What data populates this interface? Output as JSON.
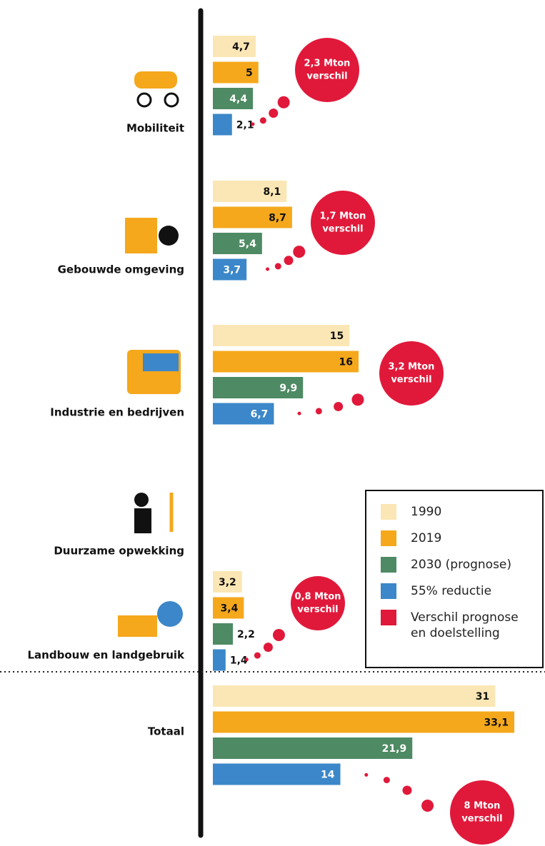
{
  "chart_data": {
    "type": "bar",
    "orientation": "horizontal",
    "categories": [
      "Mobiliteit",
      "Gebouwde omgeving",
      "Industrie en bedrijven",
      "Duurzame opwekking",
      "Landbouw en landgebruik",
      "Totaal"
    ],
    "xlim": [
      0,
      40
    ],
    "series": [
      {
        "name": "1990",
        "color": "#fbe7b5",
        "values": [
          4.7,
          8.1,
          15,
          null,
          3.2,
          31
        ],
        "value_labels": [
          "4,7",
          "8,1",
          "15",
          null,
          "3,2",
          "31"
        ]
      },
      {
        "name": "2019",
        "color": "#f5a81c",
        "values": [
          5,
          8.7,
          16,
          null,
          3.4,
          33.1
        ],
        "value_labels": [
          "5",
          "8,7",
          "16",
          null,
          "3,4",
          "33,1"
        ]
      },
      {
        "name": "2030 (prognose)",
        "color": "#4e8a63",
        "values": [
          4.4,
          5.4,
          9.9,
          null,
          2.2,
          21.9
        ],
        "value_labels": [
          "4,4",
          "5,4",
          "9,9",
          null,
          "2,2",
          "21,9"
        ]
      },
      {
        "name": "55% reductie",
        "color": "#3b87c9",
        "values": [
          2.1,
          3.7,
          6.7,
          null,
          1.4,
          14
        ],
        "value_labels": [
          "2,1",
          "3,7",
          "6,7",
          null,
          "1,4",
          "14"
        ]
      }
    ],
    "difference": {
      "name": "Verschil prognose en doelstelling",
      "color": "#e0193a",
      "labels": [
        "2,3 Mton",
        "1,7 Mton",
        "3,2 Mton",
        null,
        "0,8 Mton",
        "8 Mton"
      ],
      "word": "verschil"
    }
  }
}
